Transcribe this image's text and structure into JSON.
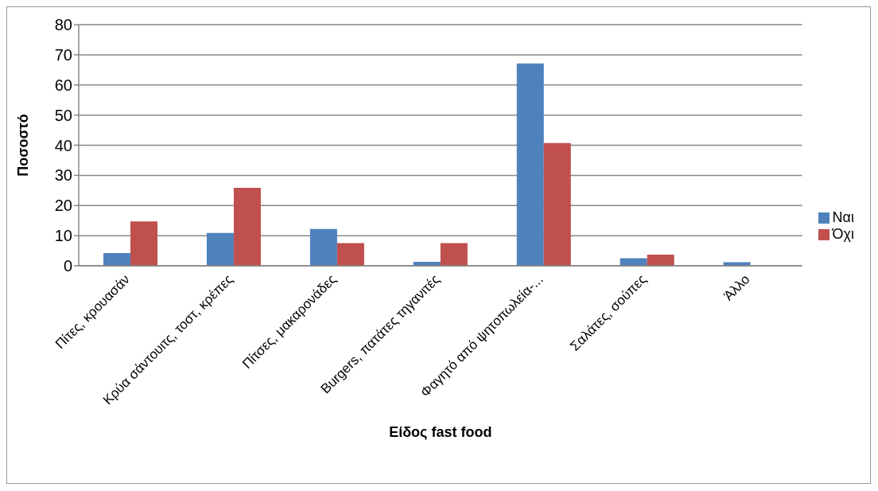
{
  "chart_data": {
    "type": "bar",
    "xlabel": "Είδος fast food",
    "ylabel": "Ποσοστό",
    "categories": [
      "Πίτες, κρουασάν",
      "Κρύα σάντουιτς, τοστ, κρέπες",
      "Πίτσες, μακαρονάδες",
      "Burgers, πατάτες τηγανιτές",
      "Φαγητό από ψητοπωλεία-...",
      "Σαλάτες, σούπες",
      "Άλλο"
    ],
    "series": [
      {
        "name": "Ναι",
        "color": "#4f81bd",
        "values": [
          4.2,
          10.9,
          12.2,
          1.3,
          67.1,
          2.5,
          1.2
        ]
      },
      {
        "name": "Όχι",
        "color": "#c0504d",
        "values": [
          14.7,
          25.9,
          7.5,
          7.5,
          40.7,
          3.7,
          0
        ]
      }
    ],
    "ylim": [
      0,
      80
    ],
    "yticks": [
      0,
      10,
      20,
      30,
      40,
      50,
      60,
      70,
      80
    ],
    "grid": "y",
    "legend": "right"
  }
}
